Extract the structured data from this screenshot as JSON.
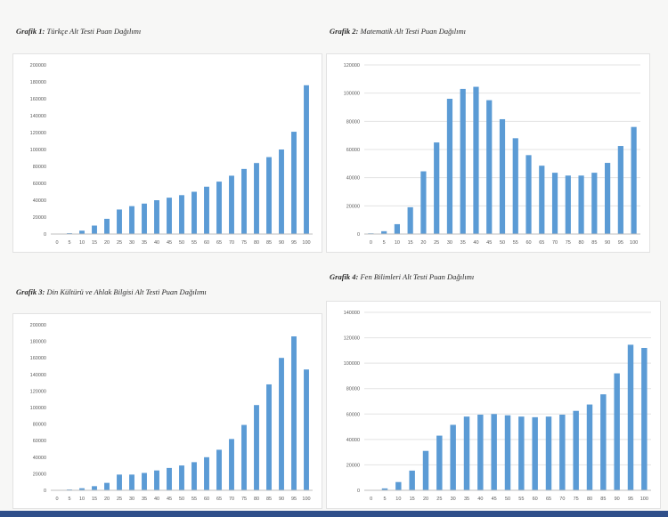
{
  "colors": {
    "bar": "#5b9bd5",
    "grid": "#e3e3e3",
    "axis": "#bfbfbf",
    "tick_text": "#595959",
    "bottom_bar": "#2f4f8a"
  },
  "captions": [
    {
      "bold": "Grafik 1:",
      "text": "Türkçe Alt Testi Puan Dağılımı"
    },
    {
      "bold": "Grafik 2:",
      "text": "Matematik Alt Testi Puan Dağılımı"
    },
    {
      "bold": "Grafik 3:",
      "text": "Din Kültürü ve Ahlak Bilgisi Alt Testi Puan Dağılımı"
    },
    {
      "bold": "Grafik 4:",
      "text": "Fen Bilimleri Alt Testi Puan Dağılımı"
    }
  ],
  "chart_data": [
    {
      "type": "bar",
      "title": "",
      "categories": [
        "0",
        "5",
        "10",
        "15",
        "20",
        "25",
        "30",
        "35",
        "40",
        "45",
        "50",
        "55",
        "60",
        "65",
        "70",
        "75",
        "80",
        "85",
        "90",
        "95",
        "100"
      ],
      "values": [
        0,
        1000,
        4000,
        10000,
        18000,
        29000,
        33000,
        36000,
        40000,
        43000,
        46000,
        50000,
        56000,
        62000,
        69000,
        77000,
        84000,
        91000,
        100000,
        121000,
        176000
      ],
      "ylim": [
        0,
        200000
      ],
      "yticks": [
        "0",
        "20000",
        "40000",
        "60000",
        "80000",
        "100000",
        "120000",
        "140000",
        "160000",
        "180000",
        "200000"
      ],
      "grid": false
    },
    {
      "type": "bar",
      "title": "",
      "categories": [
        "0",
        "5",
        "10",
        "15",
        "20",
        "25",
        "30",
        "35",
        "40",
        "45",
        "50",
        "55",
        "60",
        "65",
        "70",
        "75",
        "80",
        "85",
        "90",
        "95",
        "100"
      ],
      "values": [
        500,
        2000,
        7000,
        19000,
        44500,
        65000,
        96000,
        103000,
        104500,
        95000,
        81500,
        68000,
        56000,
        48500,
        43500,
        41500,
        41500,
        43500,
        50500,
        62500,
        76000
      ],
      "ylim": [
        0,
        120000
      ],
      "yticks": [
        "0",
        "20000",
        "40000",
        "60000",
        "80000",
        "100000",
        "120000"
      ],
      "grid": true
    },
    {
      "type": "bar",
      "title": "",
      "categories": [
        "0",
        "5",
        "10",
        "15",
        "20",
        "25",
        "30",
        "35",
        "40",
        "45",
        "50",
        "55",
        "60",
        "65",
        "70",
        "75",
        "80",
        "85",
        "90",
        "95",
        "100"
      ],
      "values": [
        0,
        1000,
        2500,
        5000,
        9000,
        19000,
        19000,
        21000,
        24000,
        27000,
        30000,
        34000,
        40000,
        49000,
        62000,
        79000,
        103000,
        128000,
        160000,
        186000,
        146000
      ],
      "ylim": [
        0,
        200000
      ],
      "yticks": [
        "0",
        "20000",
        "40000",
        "60000",
        "80000",
        "100000",
        "120000",
        "140000",
        "160000",
        "180000",
        "200000"
      ],
      "grid": false
    },
    {
      "type": "bar",
      "title": "",
      "categories": [
        "0",
        "5",
        "10",
        "15",
        "20",
        "25",
        "30",
        "35",
        "40",
        "45",
        "50",
        "55",
        "60",
        "65",
        "70",
        "75",
        "80",
        "85",
        "90",
        "95",
        "100"
      ],
      "values": [
        200,
        1500,
        6500,
        15500,
        31000,
        43000,
        51500,
        58000,
        59500,
        60000,
        59000,
        58000,
        57500,
        58000,
        59500,
        62500,
        67500,
        75500,
        92000,
        114500,
        112000
      ],
      "ylim": [
        0,
        140000
      ],
      "yticks": [
        "0",
        "20000",
        "40000",
        "60000",
        "80000",
        "100000",
        "120000",
        "140000"
      ],
      "grid": true
    }
  ]
}
